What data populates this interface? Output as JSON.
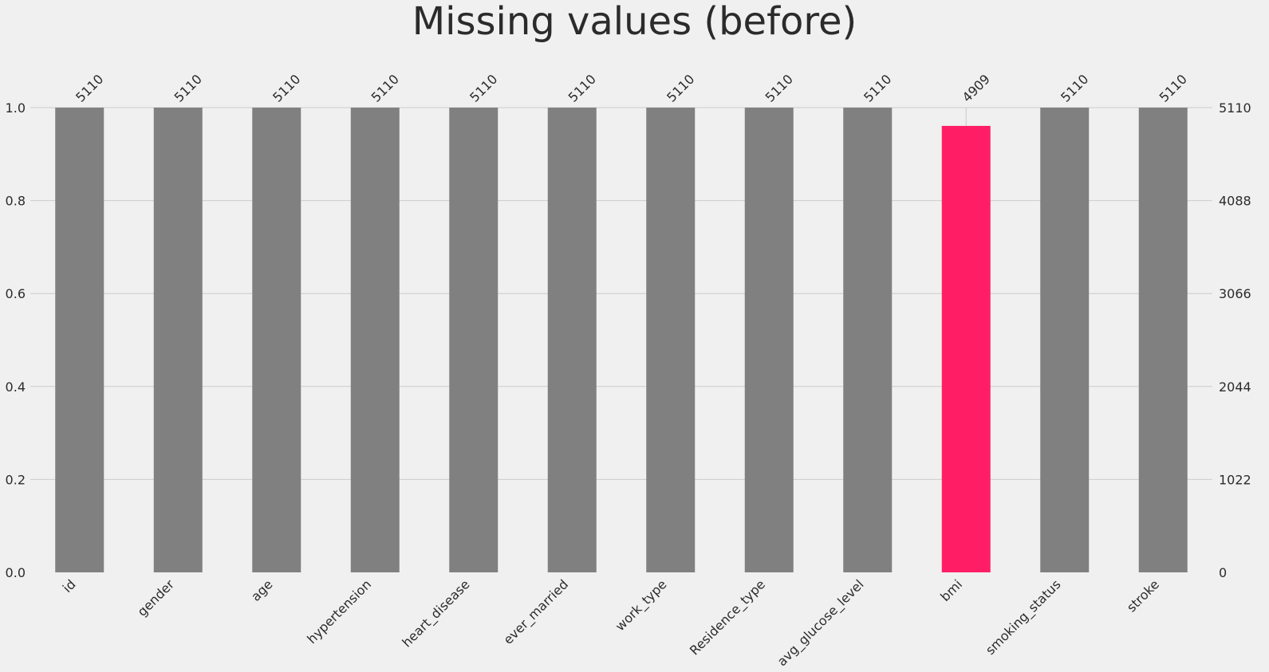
{
  "chart_data": {
    "type": "bar",
    "title": "Missing values (before)",
    "categories": [
      "id",
      "gender",
      "age",
      "hypertension",
      "heart_disease",
      "ever_married",
      "work_type",
      "Residence_type",
      "avg_glucose_level",
      "bmi",
      "smoking_status",
      "stroke"
    ],
    "counts": [
      5110,
      5110,
      5110,
      5110,
      5110,
      5110,
      5110,
      5110,
      5110,
      4909,
      5110,
      5110
    ],
    "total": 5110,
    "ylim": [
      0,
      1
    ],
    "left_ticks": [
      "0.0",
      "0.2",
      "0.4",
      "0.6",
      "0.8",
      "1.0"
    ],
    "right_ticks": [
      "0",
      "1022",
      "2044",
      "3066",
      "4088",
      "5110"
    ],
    "grid": true,
    "colors": {
      "bar": "#808080",
      "highlight": "#ff1e66",
      "background": "#f0f0f0",
      "grid": "#cbcbcb",
      "text": "#2b2b2b"
    },
    "highlight_category": "bmi"
  }
}
